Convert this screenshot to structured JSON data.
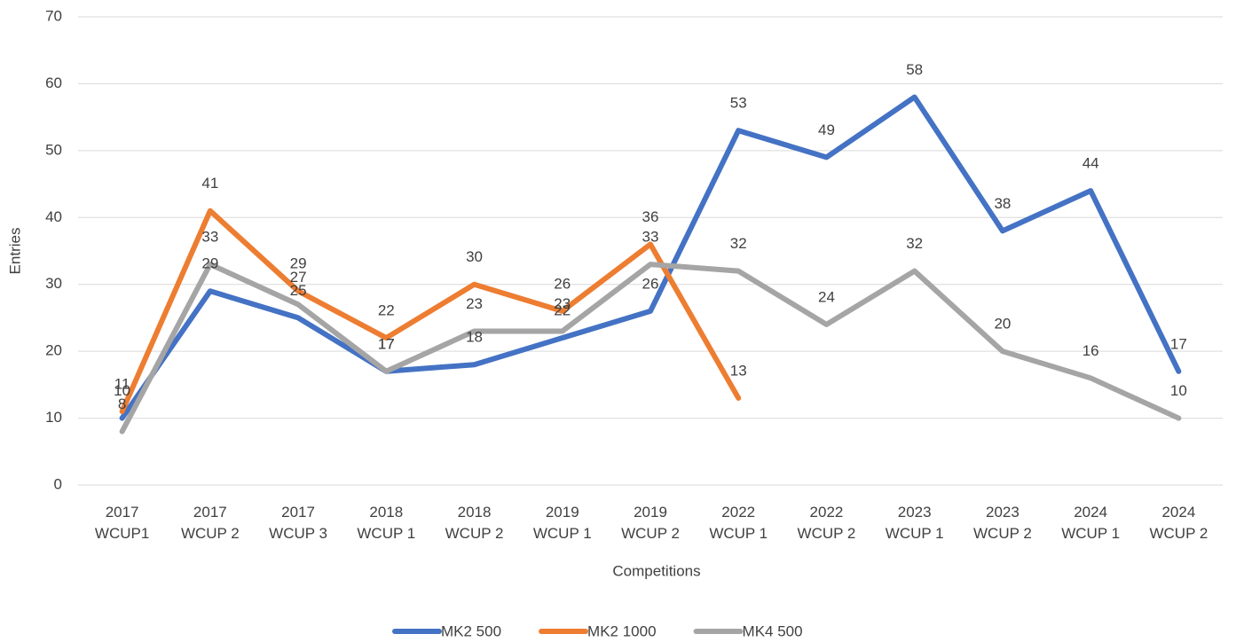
{
  "chart_data": {
    "type": "line",
    "x_label": "Competitions",
    "y_label": "Entries",
    "categories": [
      "2017 WCUP1",
      "2017 WCUP 2",
      "2017 WCUP 3",
      "2018 WCUP 1",
      "2018 WCUP 2",
      "2019 WCUP 1",
      "2019 WCUP 2",
      "2022 WCUP 1",
      "2022 WCUP 2",
      "2023 WCUP 1",
      "2023 WCUP 2",
      "2024 WCUP 1",
      "2024 WCUP 2"
    ],
    "series": [
      {
        "name": "MK2 500",
        "color": "#4472c4",
        "values": [
          10,
          29,
          25,
          17,
          18,
          22,
          26,
          53,
          49,
          58,
          38,
          44,
          17
        ]
      },
      {
        "name": "MK2 1000",
        "color": "#ed7d31",
        "values": [
          11,
          41,
          29,
          22,
          30,
          26,
          36,
          13,
          null,
          null,
          null,
          null,
          null
        ]
      },
      {
        "name": "MK4 500",
        "color": "#a5a5a5",
        "values": [
          8,
          33,
          27,
          17,
          23,
          23,
          33,
          32,
          24,
          32,
          20,
          16,
          10
        ]
      }
    ],
    "ylim": [
      0,
      70
    ],
    "yticks": [
      0,
      10,
      20,
      30,
      40,
      50,
      60,
      70
    ],
    "grid": true,
    "legend": "bottom"
  }
}
